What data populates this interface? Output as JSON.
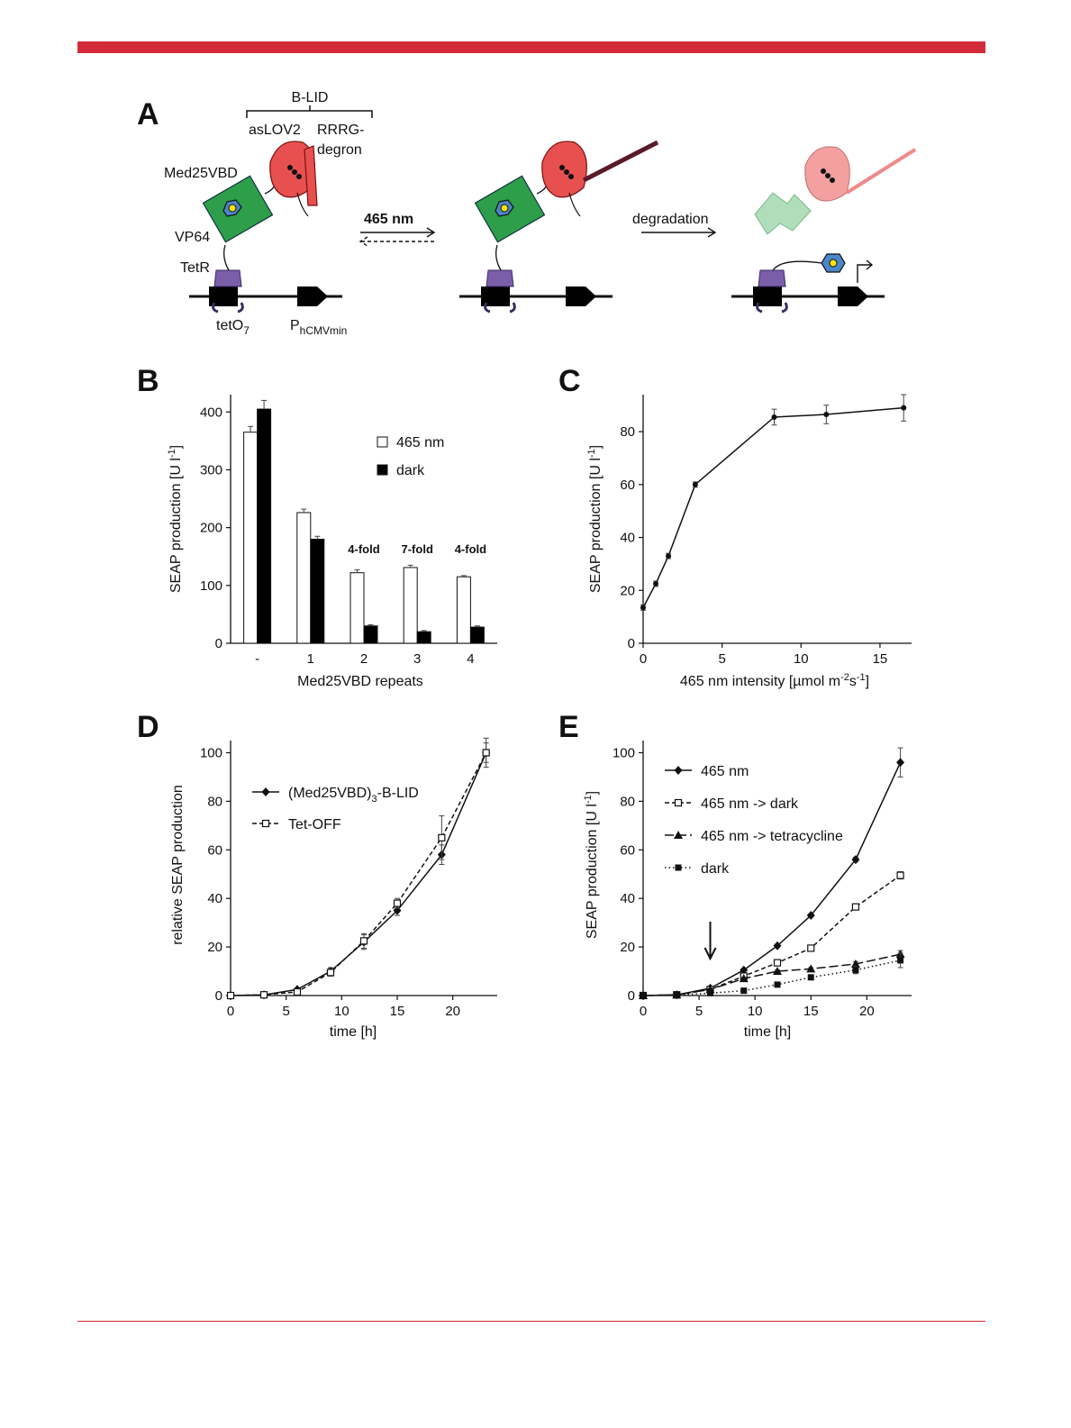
{
  "page": {
    "accent_color": "#d42b3a"
  },
  "panelA": {
    "label": "A",
    "b_lid": "B-LID",
    "aslov2": "asLOV2",
    "rrrg_1": "RRRG-",
    "rrrg_2": "degron",
    "med25vbd": "Med25VBD",
    "vp64": "VP64",
    "tetr": "TetR",
    "teto_main": "tetO",
    "teto_sub": "7",
    "p_main": "P",
    "p_sub": "hCMVmin",
    "light": "465 nm",
    "light_color": "#2f6fd4",
    "degradation": "degradation",
    "colors": {
      "degron": "#e85050",
      "med25vbd": "#2e9e4a",
      "vp64": "#4a86c8",
      "tetr": "#7b5ea8"
    }
  },
  "chart_data": [
    {
      "panel": "B",
      "type": "bar",
      "title": "",
      "xlabel": "Med25VBD repeats",
      "ylabel_main": "SEAP production [U l",
      "ylabel_sup": "-1",
      "ylabel_end": "]",
      "ylim": [
        0,
        430
      ],
      "yticks": [
        0,
        100,
        200,
        300,
        400
      ],
      "categories": [
        "-",
        "1",
        "2",
        "3",
        "4"
      ],
      "series": [
        {
          "name": "465 nm",
          "values": [
            365,
            226,
            122,
            131,
            115
          ],
          "errors": [
            10,
            6,
            5,
            4,
            2
          ],
          "color": "#ffffff"
        },
        {
          "name": "dark",
          "values": [
            405,
            180,
            30,
            20,
            28
          ],
          "errors": [
            15,
            5,
            2,
            2,
            2
          ],
          "color": "#000000"
        }
      ],
      "fold_labels": [
        {
          "category": "2",
          "text": "4-fold"
        },
        {
          "category": "3",
          "text": "7-fold"
        },
        {
          "category": "4",
          "text": "4-fold"
        }
      ],
      "legend_position": "top-right"
    },
    {
      "panel": "C",
      "type": "line",
      "title": "",
      "xlabel_main": "465 nm intensity [µmol m",
      "xlabel_sup1": "-2",
      "xlabel_mid": "s",
      "xlabel_sup2": "-1",
      "xlabel_end": "]",
      "ylabel_main": "SEAP production [U l",
      "ylabel_sup": "-1",
      "ylabel_end": "]",
      "xlim": [
        0,
        17
      ],
      "ylim": [
        0,
        94
      ],
      "xticks": [
        0,
        5,
        10,
        15
      ],
      "yticks": [
        0,
        20,
        40,
        60,
        80
      ],
      "series": [
        {
          "name": "",
          "x": [
            0,
            0.8,
            1.6,
            3.3,
            8.3,
            11.6,
            16.5
          ],
          "y": [
            13.5,
            22.5,
            33,
            60,
            85.5,
            86.5,
            89
          ],
          "errors": [
            1,
            1,
            1,
            1,
            3,
            3.5,
            5
          ]
        }
      ]
    },
    {
      "panel": "D",
      "type": "line",
      "title": "",
      "xlabel": "time [h]",
      "ylabel": "relative SEAP production",
      "xlim": [
        0,
        24
      ],
      "ylim": [
        0,
        105
      ],
      "xticks": [
        0,
        5,
        10,
        15,
        20
      ],
      "yticks": [
        0,
        20,
        40,
        60,
        80,
        100
      ],
      "legend_position": "top-left",
      "series": [
        {
          "name_main": "(Med25VBD)",
          "name_sub": "3",
          "name_end": "-B-LID",
          "marker": "diamond",
          "dash": "solid",
          "x": [
            0,
            3,
            6,
            9,
            12,
            15,
            19,
            23
          ],
          "y": [
            0,
            0.3,
            2.5,
            10,
            22,
            35,
            58,
            100
          ],
          "errors": [
            0,
            0,
            0.5,
            1.5,
            3,
            2,
            4,
            4
          ]
        },
        {
          "name": "Tet-OFF",
          "marker": "square-open",
          "dash": "dashed",
          "x": [
            0,
            3,
            6,
            9,
            12,
            15,
            19,
            23
          ],
          "y": [
            0,
            0.3,
            1.5,
            9.5,
            22.5,
            38,
            65,
            100
          ],
          "errors": [
            0,
            0,
            0.5,
            1.5,
            3,
            2,
            9,
            6
          ]
        }
      ]
    },
    {
      "panel": "E",
      "type": "line",
      "title": "",
      "xlabel": "time [h]",
      "ylabel_main": "SEAP production [U l",
      "ylabel_sup": "-1",
      "ylabel_end": "]",
      "xlim": [
        0,
        24
      ],
      "ylim": [
        0,
        105
      ],
      "xticks": [
        0,
        5,
        10,
        15,
        20
      ],
      "yticks": [
        0,
        20,
        40,
        60,
        80,
        100
      ],
      "legend_position": "top-left",
      "arrow_at_x": 6,
      "series": [
        {
          "name": "465 nm",
          "marker": "diamond",
          "dash": "solid",
          "x": [
            0,
            3,
            6,
            9,
            12,
            15,
            19,
            23
          ],
          "y": [
            0,
            0.3,
            3,
            10.5,
            20.5,
            33,
            56,
            96
          ],
          "errors": [
            0,
            0,
            0.3,
            0.5,
            0.5,
            0.5,
            1,
            6
          ]
        },
        {
          "name": "465 nm -> dark",
          "marker": "square-open",
          "dash": "dashed",
          "x": [
            0,
            3,
            6,
            9,
            12,
            15,
            19,
            23
          ],
          "y": [
            0,
            0.3,
            2.5,
            8,
            13.5,
            19.5,
            36.5,
            49.5
          ],
          "errors": [
            0,
            0,
            0.3,
            0.5,
            0.5,
            0.5,
            1,
            1.5
          ]
        },
        {
          "name": "465 nm -> tetracycline",
          "marker": "triangle",
          "dash": "longdash",
          "x": [
            0,
            3,
            6,
            9,
            12,
            15,
            19,
            23
          ],
          "y": [
            0,
            0.3,
            2.5,
            7,
            10,
            11,
            13,
            17
          ],
          "errors": [
            0,
            0,
            0.3,
            0.5,
            0.5,
            0.5,
            1,
            1.5
          ]
        },
        {
          "name": "dark",
          "marker": "square",
          "dash": "dotted",
          "x": [
            0,
            3,
            6,
            9,
            12,
            15,
            19,
            23
          ],
          "y": [
            0,
            0.2,
            1,
            2,
            4.5,
            7.5,
            10.5,
            14.5
          ],
          "errors": [
            0,
            0,
            0.3,
            0.3,
            0.5,
            0.5,
            1.5,
            3
          ]
        }
      ]
    }
  ]
}
